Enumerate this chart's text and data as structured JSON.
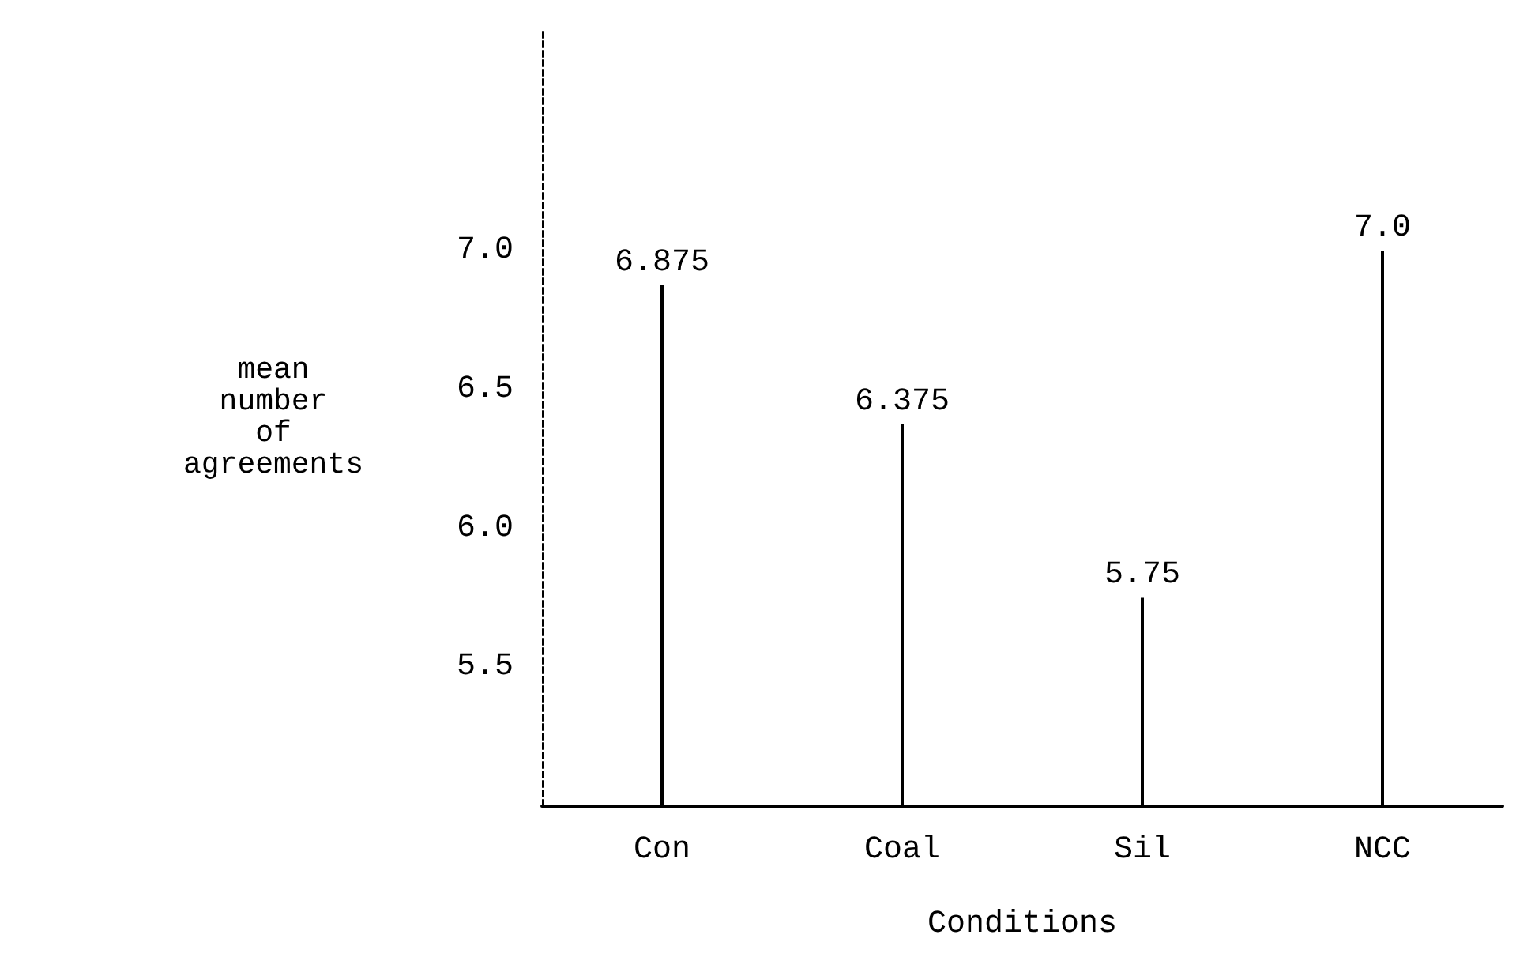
{
  "chart_data": {
    "type": "bar",
    "xlabel": "Conditions",
    "ylabel": "mean number of agreements",
    "categories": [
      "Con",
      "Coal",
      "Sil",
      "NCC"
    ],
    "series": [
      {
        "color": "#000000",
        "values": [
          6.875,
          6.375,
          5.75,
          7.0
        ],
        "value_labels": [
          "6.875",
          "6.375",
          "5.75",
          "7.0"
        ]
      }
    ],
    "ylim": [
      5.0,
      7.8
    ],
    "yticks": [
      5.5,
      {
        "value": 6,
        "label": "6.0"
      },
      6.5,
      {
        "value": 7,
        "label": "7.0"
      }
    ],
    "grid": false
  }
}
